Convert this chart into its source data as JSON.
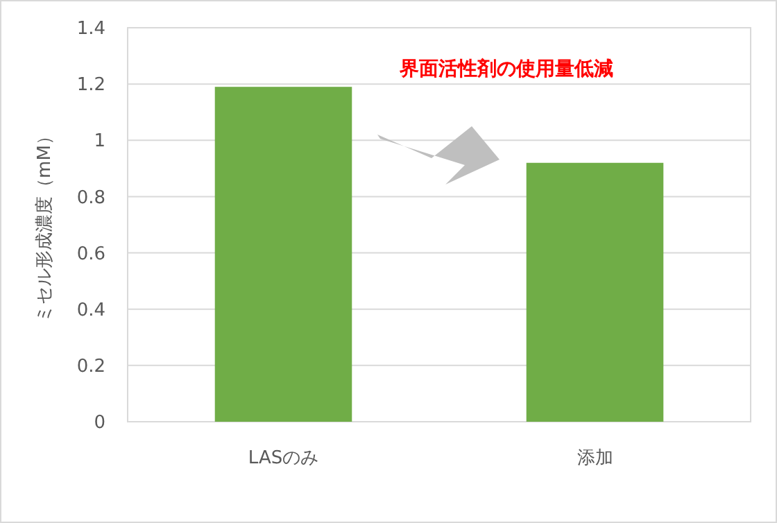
{
  "chart_data": {
    "type": "bar",
    "ylabel": "ミセル形成濃度（mM）",
    "categories": [
      "LASのみ",
      "添加"
    ],
    "values": [
      1.19,
      0.92
    ],
    "color": "#70ad47",
    "ylim": [
      0,
      1.4
    ],
    "yticks": [
      0,
      0.2,
      0.4,
      0.6,
      0.8,
      1,
      1.2,
      1.4
    ],
    "grid": "y",
    "annotations": [
      "界面活性剤の使用量低減"
    ]
  }
}
